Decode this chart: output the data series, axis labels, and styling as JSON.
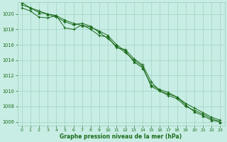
{
  "x": [
    0,
    1,
    2,
    3,
    4,
    5,
    6,
    7,
    8,
    9,
    10,
    11,
    12,
    13,
    14,
    15,
    16,
    17,
    18,
    19,
    20,
    21,
    22,
    23
  ],
  "line1": [
    1021.5,
    1020.8,
    1020.2,
    1020.0,
    1019.8,
    1019.2,
    1018.8,
    1018.5,
    1018.3,
    1017.8,
    1017.2,
    1016.0,
    1015.2,
    1013.8,
    1013.0,
    1010.8,
    1010.2,
    1009.8,
    1009.2,
    1008.2,
    1007.3,
    1006.8,
    1006.2,
    1006.0
  ],
  "line2": [
    1021.2,
    1020.8,
    1020.4,
    1020.0,
    1019.6,
    1019.0,
    1018.6,
    1018.8,
    1018.4,
    1017.6,
    1016.8,
    1015.8,
    1015.0,
    1014.0,
    1013.2,
    1010.6,
    1010.0,
    1009.4,
    1009.0,
    1008.0,
    1007.5,
    1007.0,
    1006.4,
    1006.0
  ],
  "line3": [
    1020.8,
    1020.4,
    1019.6,
    1019.5,
    1019.8,
    1018.2,
    1018.0,
    1018.6,
    1018.0,
    1017.2,
    1017.0,
    1015.6,
    1015.4,
    1014.2,
    1013.4,
    1011.2,
    1010.0,
    1009.6,
    1009.2,
    1008.4,
    1007.8,
    1007.2,
    1006.6,
    1006.2
  ],
  "ylim": [
    1005.5,
    1021.5
  ],
  "yticks": [
    1006,
    1008,
    1010,
    1012,
    1014,
    1016,
    1018,
    1020
  ],
  "xlim": [
    -0.5,
    23.5
  ],
  "xticks": [
    0,
    1,
    2,
    3,
    4,
    5,
    6,
    7,
    8,
    9,
    10,
    11,
    12,
    13,
    14,
    15,
    16,
    17,
    18,
    19,
    20,
    21,
    22,
    23
  ],
  "line_color": "#1a6b1a",
  "bg_color": "#c8ede4",
  "grid_color": "#99ccbb",
  "xlabel": "Graphe pression niveau de la mer (hPa)",
  "xlabel_color": "#1a6b1a",
  "tick_color": "#1a6b1a",
  "marker1": "^",
  "marker2": "+",
  "marker3": "D"
}
